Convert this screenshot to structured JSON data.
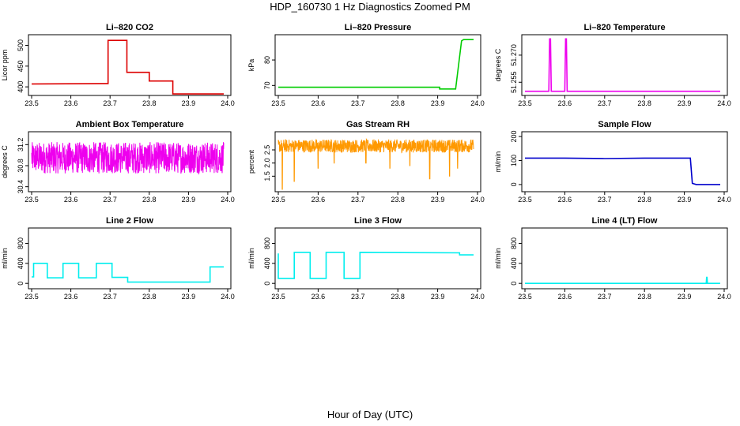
{
  "page": {
    "title": "HDP_160730  1 Hz Diagnostics Zoomed PM",
    "xlabel": "Hour of Day (UTC)"
  },
  "chart_data": [
    {
      "type": "line",
      "title": "Li–820 CO2",
      "ylabel": "Licor ppm",
      "color": "#dd0000",
      "xlim": [
        23.5,
        24.0
      ],
      "ylim": [
        385,
        520
      ],
      "xticks": [
        "23.5",
        "23.6",
        "23.7",
        "23.8",
        "23.9",
        "24.0"
      ],
      "yticks": [
        "400",
        "450",
        "500"
      ],
      "series": [
        {
          "x": [
            23.5,
            23.695,
            23.695,
            23.743,
            23.743,
            23.8,
            23.8,
            23.86,
            23.86,
            23.99
          ],
          "y": [
            407,
            408,
            512,
            512,
            435,
            435,
            414,
            414,
            383,
            383
          ]
        }
      ]
    },
    {
      "type": "line",
      "title": "Li–820 Pressure",
      "ylabel": "kPa",
      "color": "#00cc00",
      "xlim": [
        23.5,
        24.0
      ],
      "ylim": [
        67,
        89
      ],
      "xticks": [
        "23.5",
        "23.6",
        "23.7",
        "23.8",
        "23.9",
        "24.0"
      ],
      "yticks": [
        "70",
        "80"
      ],
      "series": [
        {
          "x": [
            23.5,
            23.905,
            23.905,
            23.945,
            23.96,
            23.965,
            23.99
          ],
          "y": [
            69.3,
            69.3,
            68.6,
            68.6,
            87.5,
            88,
            88
          ]
        }
      ]
    },
    {
      "type": "line",
      "title": "Li–820 Temperature",
      "ylabel": "degrees C",
      "color": "#ee00ee",
      "xlim": [
        23.5,
        24.0
      ],
      "ylim": [
        51.249,
        51.28
      ],
      "xticks": [
        "23.5",
        "23.6",
        "23.7",
        "23.8",
        "23.9",
        "24.0"
      ],
      "yticks": [
        "51.255",
        "51.270"
      ],
      "series": [
        {
          "x": [
            23.5,
            23.56,
            23.562,
            23.564,
            23.566,
            23.6,
            23.602,
            23.604,
            23.606,
            23.99
          ],
          "y": [
            51.25,
            51.25,
            51.279,
            51.279,
            51.25,
            51.25,
            51.279,
            51.279,
            51.25,
            51.25
          ]
        }
      ]
    },
    {
      "type": "line",
      "title": "Ambient Box Temperature",
      "ylabel": "degrees C",
      "color": "#ee00ee",
      "xlim": [
        23.5,
        24.0
      ],
      "ylim": [
        30.35,
        31.4
      ],
      "xticks": [
        "23.5",
        "23.6",
        "23.7",
        "23.8",
        "23.9",
        "24.0"
      ],
      "yticks": [
        "30.4",
        "30.8",
        "31.2"
      ],
      "series": [
        {
          "noise": {
            "mean": 30.95,
            "spread": 0.3,
            "from": 23.5,
            "to": 23.99
          }
        }
      ]
    },
    {
      "type": "line",
      "title": "Gas Stream RH",
      "ylabel": "percent",
      "color": "#ff9900",
      "xlim": [
        23.5,
        24.0
      ],
      "ylim": [
        1.0,
        3.1
      ],
      "xticks": [
        "23.5",
        "23.6",
        "23.7",
        "23.8",
        "23.9",
        "24.0"
      ],
      "yticks": [
        "1.5",
        "2.0",
        "2.5"
      ],
      "series": [
        {
          "noise": {
            "mean": 2.65,
            "spread": 0.25,
            "from": 23.5,
            "to": 23.99
          },
          "dips": [
            [
              23.51,
              1.0
            ],
            [
              23.54,
              1.3
            ],
            [
              23.6,
              1.8
            ],
            [
              23.64,
              2.0
            ],
            [
              23.72,
              2.0
            ],
            [
              23.78,
              1.8
            ],
            [
              23.83,
              1.9
            ],
            [
              23.88,
              1.4
            ],
            [
              23.93,
              1.5
            ],
            [
              23.95,
              1.8
            ]
          ]
        }
      ]
    },
    {
      "type": "line",
      "title": "Sample Flow",
      "ylabel": "ml/min",
      "color": "#0000cc",
      "xlim": [
        23.5,
        24.0
      ],
      "ylim": [
        -20,
        210
      ],
      "xticks": [
        "23.5",
        "23.6",
        "23.7",
        "23.8",
        "23.9",
        "24.0"
      ],
      "yticks": [
        "0",
        "100",
        "200"
      ],
      "series": [
        {
          "x": [
            23.5,
            23.6,
            23.7,
            23.8,
            23.9,
            23.915,
            23.92,
            23.93,
            23.99
          ],
          "y": [
            110,
            110,
            108,
            110,
            110,
            110,
            5,
            0,
            0
          ]
        }
      ]
    },
    {
      "type": "line",
      "title": "Line 2 Flow",
      "ylabel": "ml/min",
      "color": "#00eeee",
      "xlim": [
        23.5,
        24.0
      ],
      "ylim": [
        -60,
        1060
      ],
      "xticks": [
        "23.5",
        "23.6",
        "23.7",
        "23.8",
        "23.9",
        "24.0"
      ],
      "yticks": [
        "0",
        "400",
        "800"
      ],
      "series": [
        {
          "x": [
            23.5,
            23.505,
            23.505,
            23.54,
            23.54,
            23.58,
            23.58,
            23.62,
            23.62,
            23.665,
            23.665,
            23.705,
            23.705,
            23.745,
            23.745,
            23.955,
            23.955,
            23.99
          ],
          "y": [
            130,
            130,
            400,
            400,
            110,
            110,
            400,
            400,
            110,
            110,
            400,
            400,
            120,
            120,
            25,
            25,
            330,
            330
          ]
        }
      ]
    },
    {
      "type": "line",
      "title": "Line 3 Flow",
      "ylabel": "ml/min",
      "color": "#00eeee",
      "xlim": [
        23.5,
        24.0
      ],
      "ylim": [
        -60,
        1060
      ],
      "xticks": [
        "23.5",
        "23.6",
        "23.7",
        "23.8",
        "23.9",
        "24.0"
      ],
      "yticks": [
        "0",
        "400",
        "800"
      ],
      "series": [
        {
          "x": [
            23.5,
            23.5,
            23.5,
            23.54,
            23.54,
            23.58,
            23.58,
            23.62,
            23.62,
            23.665,
            23.665,
            23.705,
            23.705,
            23.955,
            23.955,
            23.99
          ],
          "y": [
            600,
            100,
            100,
            100,
            620,
            620,
            100,
            100,
            620,
            620,
            100,
            100,
            620,
            610,
            570,
            570
          ]
        }
      ]
    },
    {
      "type": "line",
      "title": "Line 4 (LT) Flow",
      "ylabel": "ml/min",
      "color": "#00eeee",
      "xlim": [
        23.5,
        24.0
      ],
      "ylim": [
        -60,
        1060
      ],
      "xticks": [
        "23.5",
        "23.6",
        "23.7",
        "23.8",
        "23.9",
        "24.0"
      ],
      "yticks": [
        "0",
        "400",
        "800"
      ],
      "series": [
        {
          "x": [
            23.5,
            23.955,
            23.956,
            23.957,
            23.958,
            23.99
          ],
          "y": [
            0,
            0,
            120,
            120,
            0,
            0
          ]
        }
      ]
    }
  ]
}
